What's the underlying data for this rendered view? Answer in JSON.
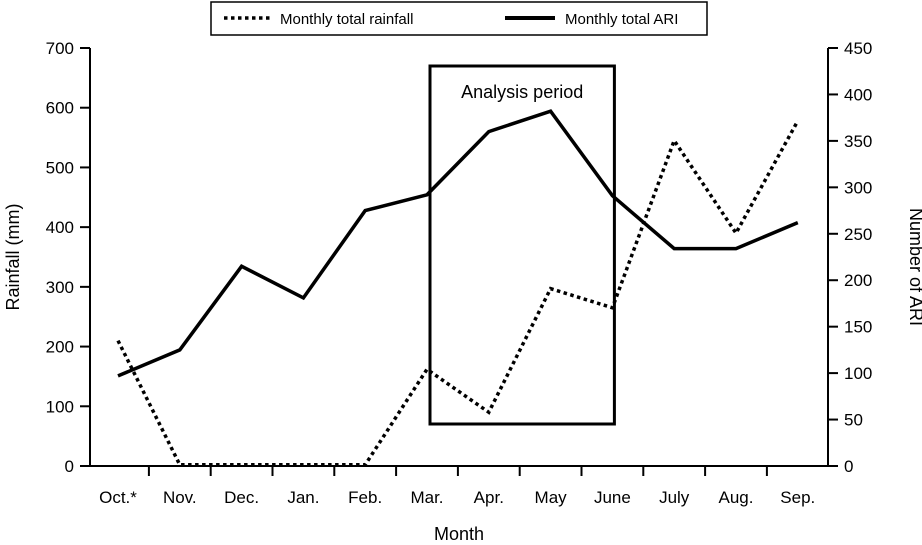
{
  "chart_data": {
    "type": "line",
    "categories": [
      "Oct.*",
      "Nov.",
      "Dec.",
      "Jan.",
      "Feb.",
      "Mar.",
      "Apr.",
      "May",
      "June",
      "July",
      "Aug.",
      "Sep."
    ],
    "xlabel": "Month",
    "ylabel_left": "Rainfall (mm)",
    "ylabel_right": "Number of ARI",
    "ylim_left": [
      0,
      700
    ],
    "ylim_right": [
      0,
      450
    ],
    "yticks_left": [
      0,
      100,
      200,
      300,
      400,
      500,
      600,
      700
    ],
    "yticks_right": [
      0,
      50,
      100,
      150,
      200,
      250,
      300,
      350,
      400,
      450
    ],
    "series": [
      {
        "name": "Monthly total rainfall",
        "axis": "left",
        "style": "dotted",
        "values": [
          210,
          2,
          2,
          2,
          2,
          162,
          90,
          297,
          265,
          545,
          390,
          578
        ]
      },
      {
        "name": "Monthly total ARI",
        "axis": "right",
        "style": "solid",
        "values": [
          97,
          125,
          215,
          181,
          275,
          292,
          360,
          382,
          291,
          234,
          234,
          262
        ]
      }
    ],
    "annotation": {
      "text": "Analysis period",
      "from_category": "Mar.",
      "to_category": "June"
    },
    "legend": {
      "position": "top-center",
      "entries": [
        "Monthly total rainfall",
        "Monthly total ARI"
      ]
    },
    "grid": false
  }
}
